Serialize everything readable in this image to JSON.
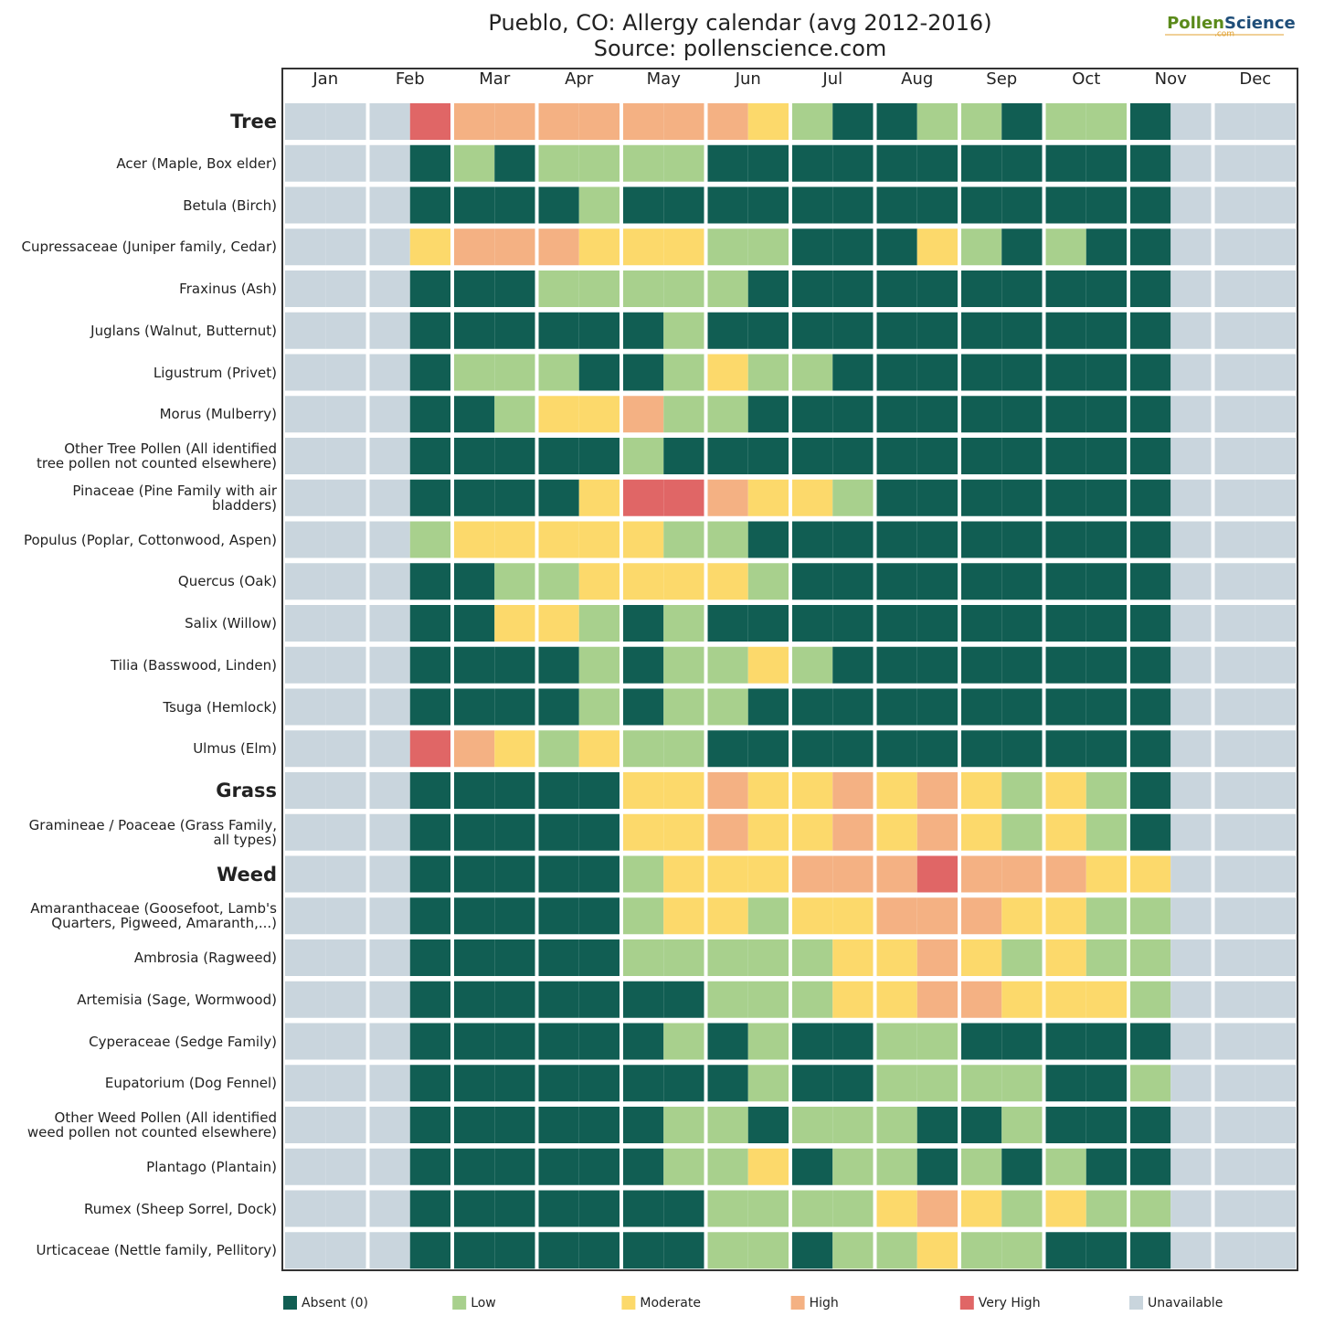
{
  "chart_data": {
    "type": "heatmap",
    "title": "Pueblo, CO: Allergy calendar (avg 2012-2016)",
    "subtitle": "Source: pollenscience.com",
    "logo": {
      "part1": "Pollen",
      "part2": "Science",
      "part3": ".com"
    },
    "months": [
      "Jan",
      "Feb",
      "Mar",
      "Apr",
      "May",
      "Jun",
      "Jul",
      "Aug",
      "Sep",
      "Oct",
      "Nov",
      "Dec"
    ],
    "levels": [
      {
        "name": "Absent (0)",
        "color": "#115e53"
      },
      {
        "name": "Low",
        "color": "#a8d08d"
      },
      {
        "name": "Moderate",
        "color": "#fcd96b"
      },
      {
        "name": "High",
        "color": "#f4b183"
      },
      {
        "name": "Very High",
        "color": "#e06666"
      },
      {
        "name": "Unavailable",
        "color": "#c9d5dd"
      }
    ],
    "rows": [
      {
        "name": "Tree",
        "bold": true,
        "values": [
          5,
          5,
          5,
          4,
          3,
          3,
          3,
          3,
          3,
          3,
          3,
          2,
          1,
          0,
          0,
          1,
          1,
          0,
          1,
          1,
          0,
          5,
          5,
          5
        ]
      },
      {
        "name": "Acer (Maple, Box elder)",
        "values": [
          5,
          5,
          5,
          0,
          1,
          0,
          1,
          1,
          1,
          1,
          0,
          0,
          0,
          0,
          0,
          0,
          0,
          0,
          0,
          0,
          0,
          5,
          5,
          5
        ]
      },
      {
        "name": "Betula (Birch)",
        "values": [
          5,
          5,
          5,
          0,
          0,
          0,
          0,
          1,
          0,
          0,
          0,
          0,
          0,
          0,
          0,
          0,
          0,
          0,
          0,
          0,
          0,
          5,
          5,
          5
        ]
      },
      {
        "name": "Cupressaceae (Juniper family, Cedar)",
        "values": [
          5,
          5,
          5,
          2,
          3,
          3,
          3,
          2,
          2,
          2,
          1,
          1,
          0,
          0,
          0,
          2,
          1,
          0,
          1,
          0,
          0,
          5,
          5,
          5
        ]
      },
      {
        "name": "Fraxinus (Ash)",
        "values": [
          5,
          5,
          5,
          0,
          0,
          0,
          1,
          1,
          1,
          1,
          1,
          0,
          0,
          0,
          0,
          0,
          0,
          0,
          0,
          0,
          0,
          5,
          5,
          5
        ]
      },
      {
        "name": "Juglans (Walnut, Butternut)",
        "values": [
          5,
          5,
          5,
          0,
          0,
          0,
          0,
          0,
          0,
          1,
          0,
          0,
          0,
          0,
          0,
          0,
          0,
          0,
          0,
          0,
          0,
          5,
          5,
          5
        ]
      },
      {
        "name": "Ligustrum (Privet)",
        "values": [
          5,
          5,
          5,
          0,
          1,
          1,
          1,
          0,
          0,
          1,
          2,
          1,
          1,
          0,
          0,
          0,
          0,
          0,
          0,
          0,
          0,
          5,
          5,
          5
        ]
      },
      {
        "name": "Morus (Mulberry)",
        "values": [
          5,
          5,
          5,
          0,
          0,
          1,
          2,
          2,
          3,
          1,
          1,
          0,
          0,
          0,
          0,
          0,
          0,
          0,
          0,
          0,
          0,
          5,
          5,
          5
        ]
      },
      {
        "name": "Other Tree Pollen (All identified\ntree pollen not counted elsewhere)",
        "values": [
          5,
          5,
          5,
          0,
          0,
          0,
          0,
          0,
          1,
          0,
          0,
          0,
          0,
          0,
          0,
          0,
          0,
          0,
          0,
          0,
          0,
          5,
          5,
          5
        ]
      },
      {
        "name": "Pinaceae (Pine Family with air\nbladders)",
        "values": [
          5,
          5,
          5,
          0,
          0,
          0,
          0,
          2,
          4,
          4,
          3,
          2,
          2,
          1,
          0,
          0,
          0,
          0,
          0,
          0,
          0,
          5,
          5,
          5
        ]
      },
      {
        "name": "Populus (Poplar, Cottonwood, Aspen)",
        "values": [
          5,
          5,
          5,
          1,
          2,
          2,
          2,
          2,
          2,
          1,
          1,
          0,
          0,
          0,
          0,
          0,
          0,
          0,
          0,
          0,
          0,
          5,
          5,
          5
        ]
      },
      {
        "name": "Quercus (Oak)",
        "values": [
          5,
          5,
          5,
          0,
          0,
          1,
          1,
          2,
          2,
          2,
          2,
          1,
          0,
          0,
          0,
          0,
          0,
          0,
          0,
          0,
          0,
          5,
          5,
          5
        ]
      },
      {
        "name": "Salix (Willow)",
        "values": [
          5,
          5,
          5,
          0,
          0,
          2,
          2,
          1,
          0,
          1,
          0,
          0,
          0,
          0,
          0,
          0,
          0,
          0,
          0,
          0,
          0,
          5,
          5,
          5
        ]
      },
      {
        "name": "Tilia (Basswood, Linden)",
        "values": [
          5,
          5,
          5,
          0,
          0,
          0,
          0,
          1,
          0,
          1,
          1,
          2,
          1,
          0,
          0,
          0,
          0,
          0,
          0,
          0,
          0,
          5,
          5,
          5
        ]
      },
      {
        "name": "Tsuga (Hemlock)",
        "values": [
          5,
          5,
          5,
          0,
          0,
          0,
          0,
          1,
          0,
          1,
          1,
          0,
          0,
          0,
          0,
          0,
          0,
          0,
          0,
          0,
          0,
          5,
          5,
          5
        ]
      },
      {
        "name": "Ulmus (Elm)",
        "values": [
          5,
          5,
          5,
          4,
          3,
          2,
          1,
          2,
          1,
          1,
          0,
          0,
          0,
          0,
          0,
          0,
          0,
          0,
          0,
          0,
          0,
          5,
          5,
          5
        ]
      },
      {
        "name": "Grass",
        "bold": true,
        "values": [
          5,
          5,
          5,
          0,
          0,
          0,
          0,
          0,
          2,
          2,
          3,
          2,
          2,
          3,
          2,
          3,
          2,
          1,
          2,
          1,
          0,
          5,
          5,
          5
        ]
      },
      {
        "name": "Gramineae / Poaceae (Grass Family,\nall types)",
        "values": [
          5,
          5,
          5,
          0,
          0,
          0,
          0,
          0,
          2,
          2,
          3,
          2,
          2,
          3,
          2,
          3,
          2,
          1,
          2,
          1,
          0,
          5,
          5,
          5
        ]
      },
      {
        "name": "Weed",
        "bold": true,
        "values": [
          5,
          5,
          5,
          0,
          0,
          0,
          0,
          0,
          1,
          2,
          2,
          2,
          3,
          3,
          3,
          4,
          3,
          3,
          3,
          2,
          2,
          5,
          5,
          5
        ]
      },
      {
        "name": "Amaranthaceae (Goosefoot, Lamb's\nQuarters, Pigweed, Amaranth,...)",
        "values": [
          5,
          5,
          5,
          0,
          0,
          0,
          0,
          0,
          1,
          2,
          2,
          1,
          2,
          2,
          3,
          3,
          3,
          2,
          2,
          1,
          1,
          5,
          5,
          5
        ]
      },
      {
        "name": "Ambrosia (Ragweed)",
        "values": [
          5,
          5,
          5,
          0,
          0,
          0,
          0,
          0,
          1,
          1,
          1,
          1,
          1,
          2,
          2,
          3,
          2,
          1,
          2,
          1,
          1,
          5,
          5,
          5
        ]
      },
      {
        "name": "Artemisia (Sage, Wormwood)",
        "values": [
          5,
          5,
          5,
          0,
          0,
          0,
          0,
          0,
          0,
          0,
          1,
          1,
          1,
          2,
          2,
          3,
          3,
          2,
          2,
          2,
          1,
          5,
          5,
          5
        ]
      },
      {
        "name": "Cyperaceae (Sedge Family)",
        "values": [
          5,
          5,
          5,
          0,
          0,
          0,
          0,
          0,
          0,
          1,
          0,
          1,
          0,
          0,
          1,
          1,
          0,
          0,
          0,
          0,
          0,
          5,
          5,
          5
        ]
      },
      {
        "name": "Eupatorium (Dog Fennel)",
        "values": [
          5,
          5,
          5,
          0,
          0,
          0,
          0,
          0,
          0,
          0,
          0,
          1,
          0,
          0,
          1,
          1,
          1,
          1,
          0,
          0,
          1,
          5,
          5,
          5
        ]
      },
      {
        "name": "Other Weed Pollen (All identified\nweed pollen not counted elsewhere)",
        "values": [
          5,
          5,
          5,
          0,
          0,
          0,
          0,
          0,
          0,
          1,
          1,
          0,
          1,
          1,
          1,
          0,
          0,
          1,
          0,
          0,
          0,
          5,
          5,
          5
        ]
      },
      {
        "name": "Plantago (Plantain)",
        "values": [
          5,
          5,
          5,
          0,
          0,
          0,
          0,
          0,
          0,
          1,
          1,
          2,
          0,
          1,
          1,
          0,
          1,
          0,
          1,
          0,
          0,
          5,
          5,
          5
        ]
      },
      {
        "name": "Rumex (Sheep Sorrel, Dock)",
        "values": [
          5,
          5,
          5,
          0,
          0,
          0,
          0,
          0,
          0,
          0,
          1,
          1,
          1,
          1,
          2,
          3,
          2,
          1,
          2,
          1,
          1,
          5,
          5,
          5
        ]
      },
      {
        "name": "Urticaceae (Nettle family, Pellitory)",
        "values": [
          5,
          5,
          5,
          0,
          0,
          0,
          0,
          0,
          0,
          0,
          1,
          1,
          0,
          1,
          1,
          2,
          1,
          1,
          0,
          0,
          0,
          5,
          5,
          5
        ]
      }
    ]
  }
}
